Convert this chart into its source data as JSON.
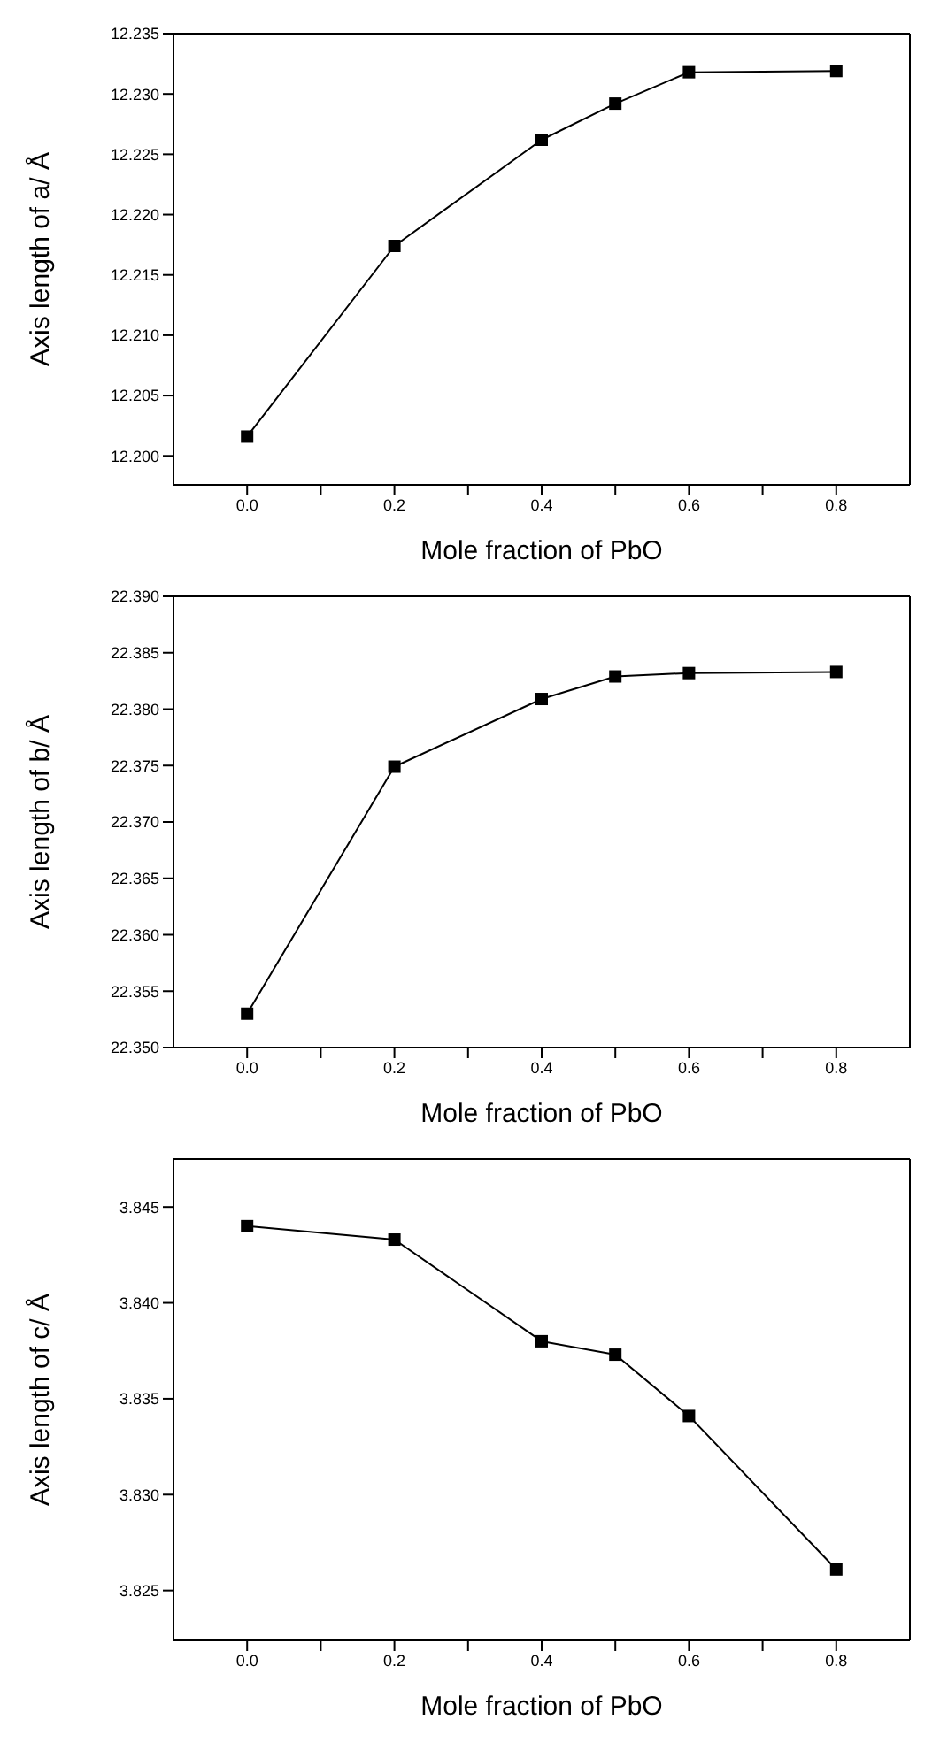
{
  "chart_data": [
    {
      "type": "line",
      "x": [
        0,
        0.2,
        0.4,
        0.5,
        0.6,
        0.8
      ],
      "xlabel": "Mole fraction of PbO",
      "ylabel": "Axis length of a/ Å",
      "marker": "square",
      "line_style": "solid",
      "series": [
        {
          "color": "#000000",
          "values": [
            12.2016,
            12.2174,
            12.2262,
            12.2292,
            12.2318,
            12.2319
          ]
        }
      ],
      "xlim": [
        -0.1,
        0.9
      ],
      "xticks": [
        {
          "value": 0,
          "label": "0.0"
        },
        {
          "value": 0.1,
          "label": null
        },
        0.2,
        {
          "value": 0.3,
          "label": null
        },
        0.4,
        {
          "value": 0.5,
          "label": null
        },
        0.6,
        {
          "value": 0.7,
          "label": null
        },
        0.8
      ],
      "ylim": [
        12.1976,
        12.235
      ],
      "yticks": [
        {
          "value": 12.2,
          "label": "12.200"
        },
        12.205,
        {
          "value": 12.21,
          "label": "12.210"
        },
        12.215,
        {
          "value": 12.22,
          "label": "12.220"
        },
        12.225,
        {
          "value": 12.23,
          "label": "12.230"
        },
        12.235
      ]
    },
    {
      "type": "line",
      "x": [
        0,
        0.2,
        0.4,
        0.5,
        0.6,
        0.8
      ],
      "xlabel": "Mole fraction of PbO",
      "ylabel": "Axis length of b/ Å",
      "marker": "square",
      "line_style": "solid",
      "series": [
        {
          "color": "#000000",
          "values": [
            22.353,
            22.3749,
            22.3809,
            22.3829,
            22.3832,
            22.3833
          ]
        }
      ],
      "xlim": [
        -0.1,
        0.9
      ],
      "xticks": [
        {
          "value": 0,
          "label": "0.0"
        },
        {
          "value": 0.1,
          "label": null
        },
        0.2,
        {
          "value": 0.3,
          "label": null
        },
        0.4,
        {
          "value": 0.5,
          "label": null
        },
        0.6,
        {
          "value": 0.7,
          "label": null
        },
        0.8
      ],
      "ylim": [
        22.35,
        22.39
      ],
      "yticks": [
        {
          "value": 22.35,
          "label": "22.350"
        },
        22.355,
        {
          "value": 22.36,
          "label": "22.360"
        },
        22.365,
        {
          "value": 22.37,
          "label": "22.370"
        },
        22.375,
        {
          "value": 22.38,
          "label": "22.380"
        },
        22.385,
        {
          "value": 22.39,
          "label": "22.390"
        }
      ]
    },
    {
      "type": "line",
      "x": [
        0,
        0.2,
        0.4,
        0.5,
        0.6,
        0.8
      ],
      "xlabel": "Mole fraction of  PbO",
      "ylabel": "Axis length of c/ Å",
      "marker": "square",
      "line_style": "solid",
      "series": [
        {
          "color": "#000000",
          "values": [
            3.844,
            3.8433,
            3.838,
            3.8373,
            3.8341,
            3.8261
          ]
        }
      ],
      "xlim": [
        -0.1,
        0.9
      ],
      "xticks": [
        {
          "value": 0,
          "label": "0.0"
        },
        {
          "value": 0.1,
          "label": null
        },
        0.2,
        {
          "value": 0.3,
          "label": null
        },
        0.4,
        {
          "value": 0.5,
          "label": null
        },
        0.6,
        {
          "value": 0.7,
          "label": null
        },
        0.8
      ],
      "ylim": [
        3.8224,
        3.8475
      ],
      "yticks": [
        3.825,
        {
          "value": 3.83,
          "label": "3.830"
        },
        3.835,
        {
          "value": 3.84,
          "label": "3.840"
        },
        3.845
      ]
    }
  ]
}
